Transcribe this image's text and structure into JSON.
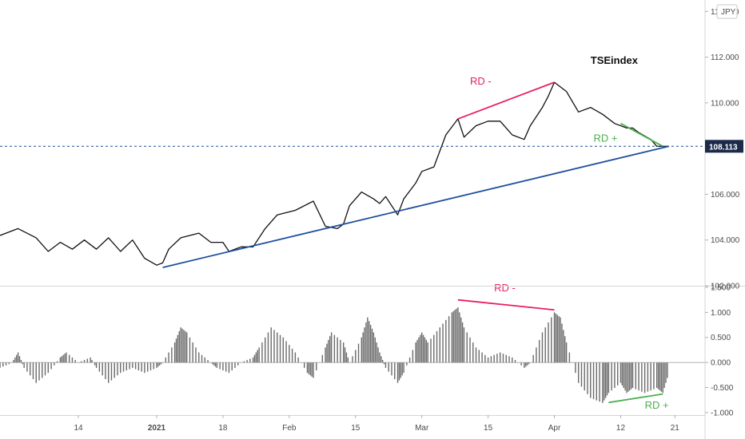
{
  "chart_data": [
    {
      "type": "line",
      "panel": "price",
      "title": "TSEindex",
      "currency_badge": "JPY",
      "xlabel": "",
      "ylabel": "",
      "x_ticks": [
        "14",
        "2021",
        "18",
        "Feb",
        "15",
        "Mar",
        "15",
        "Apr",
        "12",
        "21"
      ],
      "x_tick_days": [
        13,
        26,
        37,
        48,
        59,
        70,
        81,
        92,
        103,
        112
      ],
      "xlim": [
        0,
        117
      ],
      "y_ticks": [
        "102.000",
        "104.000",
        "106.000",
        "108.000",
        "110.000",
        "112.000",
        "114.000"
      ],
      "y_tick_values": [
        102,
        104,
        106,
        108,
        110,
        112,
        114
      ],
      "ylim": [
        102,
        114.5
      ],
      "grid": false,
      "last_price_label": "108.113",
      "last_price": 108.1,
      "series": [
        {
          "name": "",
          "x": [
            0,
            3,
            6,
            8,
            10,
            12,
            14,
            16,
            18,
            20,
            22,
            24,
            26,
            27,
            28,
            30,
            33,
            35,
            37,
            38,
            40,
            42,
            44,
            46,
            49,
            52,
            54,
            56,
            57,
            58,
            60,
            62,
            63,
            64,
            66,
            67,
            69,
            70,
            72,
            74,
            76,
            77,
            79,
            81,
            83,
            85,
            87,
            88,
            90,
            91,
            92,
            94,
            96,
            98,
            100,
            102,
            104,
            105,
            106,
            108,
            109,
            111
          ],
          "y": [
            104.2,
            104.5,
            104.1,
            103.5,
            103.9,
            103.6,
            104.0,
            103.6,
            104.1,
            103.5,
            104.0,
            103.2,
            102.9,
            103.0,
            103.6,
            104.1,
            104.3,
            103.9,
            103.9,
            103.5,
            103.7,
            103.7,
            104.5,
            105.1,
            105.3,
            105.7,
            104.6,
            104.5,
            104.7,
            105.5,
            106.1,
            105.8,
            105.6,
            105.9,
            105.1,
            105.8,
            106.5,
            107.0,
            107.2,
            108.6,
            109.3,
            108.5,
            109.0,
            109.2,
            109.2,
            108.6,
            108.4,
            109.0,
            109.8,
            110.3,
            110.9,
            110.5,
            109.6,
            109.8,
            109.5,
            109.1,
            108.9,
            108.9,
            108.7,
            108.4,
            108.1,
            108.1
          ]
        }
      ],
      "annotations": [
        {
          "type": "line",
          "color": "#1f4e9e",
          "from": [
            27,
            102.8
          ],
          "to": [
            111,
            108.1
          ]
        },
        {
          "type": "line",
          "color": "#e91e63",
          "from": [
            76,
            109.3
          ],
          "to": [
            92,
            110.9
          ]
        },
        {
          "type": "line",
          "color": "#4caf50",
          "from": [
            103,
            109.1
          ],
          "to": [
            110,
            108.1
          ]
        },
        {
          "type": "hline",
          "color": "#1f4e9e",
          "y": 108.1,
          "style": "dashed"
        },
        {
          "type": "text",
          "text": "RD -",
          "color": "#e91e63",
          "x": 78,
          "y": 110.8
        },
        {
          "type": "text",
          "text": "RD +",
          "color": "#4caf50",
          "x": 98.5,
          "y": 108.3
        }
      ]
    },
    {
      "type": "bar",
      "panel": "oscillator",
      "title": "",
      "xlabel": "",
      "ylabel": "",
      "y_ticks": [
        "-1.000",
        "-0.500",
        "0.000",
        "0.500",
        "1.000",
        "1.500"
      ],
      "y_tick_values": [
        -1.0,
        -0.5,
        0.0,
        0.5,
        1.0,
        1.5
      ],
      "ylim": [
        -1.05,
        1.5
      ],
      "grid": false,
      "x": [
        0,
        2,
        3,
        4,
        6,
        8,
        10,
        11,
        13,
        15,
        16,
        18,
        20,
        22,
        24,
        26,
        27,
        29,
        30,
        31,
        33,
        35,
        36,
        38,
        40,
        42,
        43,
        45,
        47,
        49,
        51,
        52,
        54,
        55,
        57,
        58,
        60,
        61,
        62,
        63,
        64,
        66,
        67,
        69,
        70,
        71,
        73,
        75,
        76,
        77,
        79,
        81,
        83,
        85,
        87,
        88,
        90,
        92,
        93,
        94,
        96,
        98,
        100,
        101,
        103,
        104,
        105,
        107,
        109,
        110,
        111
      ],
      "y": [
        -0.1,
        0.0,
        0.2,
        -0.1,
        -0.4,
        -0.2,
        0.1,
        0.2,
        0.0,
        0.1,
        -0.1,
        -0.4,
        -0.2,
        -0.1,
        -0.2,
        -0.1,
        0.0,
        0.4,
        0.7,
        0.6,
        0.2,
        0.0,
        -0.1,
        -0.2,
        0.0,
        0.1,
        0.3,
        0.7,
        0.5,
        0.2,
        -0.2,
        -0.3,
        0.3,
        0.6,
        0.4,
        0.0,
        0.5,
        0.9,
        0.6,
        0.2,
        -0.1,
        -0.4,
        -0.2,
        0.4,
        0.6,
        0.4,
        0.7,
        1.0,
        1.1,
        0.7,
        0.3,
        0.1,
        0.2,
        0.1,
        -0.1,
        0.0,
        0.6,
        1.0,
        0.9,
        0.4,
        -0.4,
        -0.7,
        -0.8,
        -0.6,
        -0.4,
        -0.6,
        -0.5,
        -0.6,
        -0.5,
        -0.6,
        -0.2
      ],
      "annotations": [
        {
          "type": "line",
          "color": "#e91e63",
          "from": [
            76,
            1.25
          ],
          "to": [
            92,
            1.05
          ]
        },
        {
          "type": "line",
          "color": "#4caf50",
          "from": [
            101,
            -0.8
          ],
          "to": [
            110,
            -0.63
          ]
        },
        {
          "type": "text",
          "text": "RD -",
          "color": "#e91e63",
          "x": 82,
          "y": 1.42
        },
        {
          "type": "text",
          "text": "RD +",
          "color": "#4caf50",
          "x": 107,
          "y": -0.92
        }
      ]
    }
  ]
}
